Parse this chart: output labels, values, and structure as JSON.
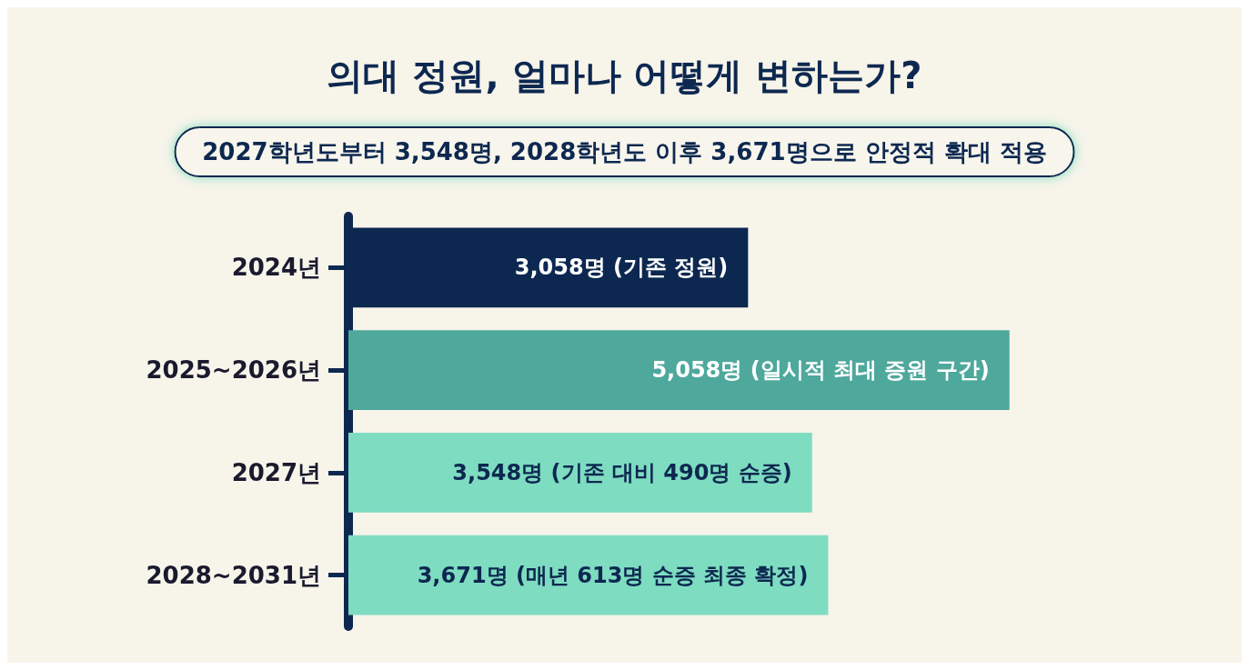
{
  "chart_data": {
    "type": "bar",
    "orientation": "horizontal",
    "title": "의대 정원, 얼마나 어떻게 변하는가?",
    "subtitle": "2027학년도부터 3,548명, 2028학년도 이후 3,671명으로 안정적 확대 적용",
    "categories": [
      "2024년",
      "2025~2026년",
      "2027년",
      "2028~2031년"
    ],
    "values": [
      3058,
      5058,
      3548,
      3671
    ],
    "colors": [
      "#0d2850",
      "#4ea89c",
      "#7edcc1",
      "#7edcc1"
    ],
    "value_labels": [
      "3,058명 (기존 정원)",
      "5,058명 (일시적 최대 증원 구간)",
      "3,548명 (기존 대비 490명 순증)",
      "3,671명 (매년 613명 순증 최종 확정)"
    ]
  }
}
